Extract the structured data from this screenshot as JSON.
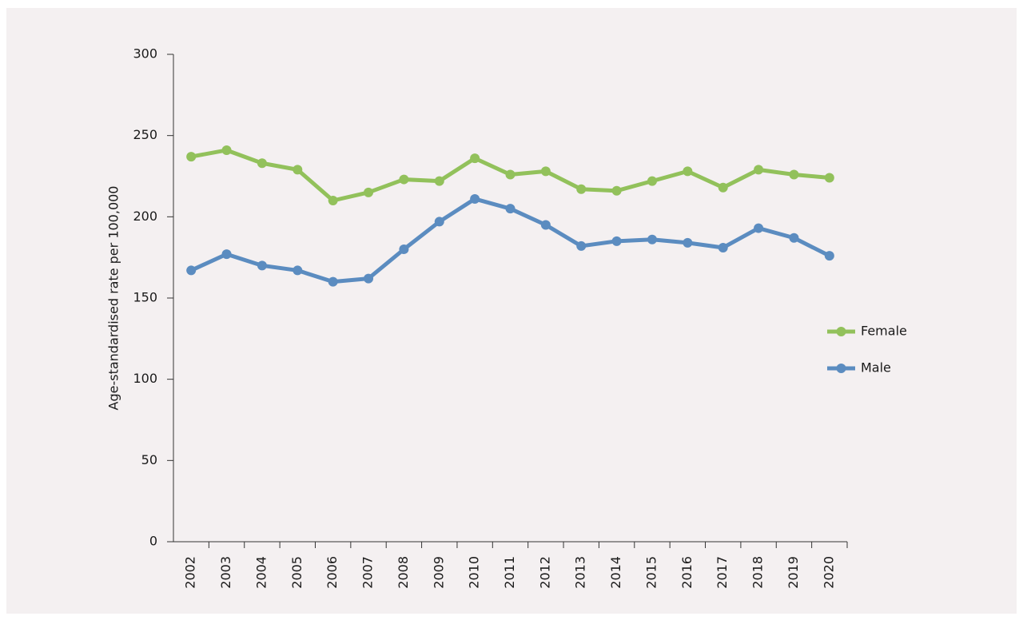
{
  "chart_data": {
    "type": "line",
    "y_label": "Age-standardised rate per 100,000",
    "categories": [
      "2002",
      "2003",
      "2004",
      "2005",
      "2006",
      "2007",
      "2008",
      "2009",
      "2010",
      "2011",
      "2012",
      "2013",
      "2014",
      "2015",
      "2016",
      "2017",
      "2018",
      "2019",
      "2020"
    ],
    "series": [
      {
        "name": "Female",
        "color": "#92c15b",
        "values": [
          237,
          241,
          233,
          229,
          210,
          215,
          223,
          222,
          236,
          226,
          228,
          217,
          216,
          222,
          228,
          218,
          229,
          226,
          224
        ]
      },
      {
        "name": "Male",
        "color": "#5b8cc0",
        "values": [
          167,
          177,
          170,
          167,
          160,
          162,
          180,
          197,
          211,
          205,
          195,
          182,
          185,
          186,
          184,
          181,
          193,
          187,
          176
        ]
      }
    ],
    "ylim": [
      0,
      300
    ],
    "yticks": [
      0,
      50,
      100,
      150,
      200,
      250,
      300
    ],
    "legend": "right"
  }
}
